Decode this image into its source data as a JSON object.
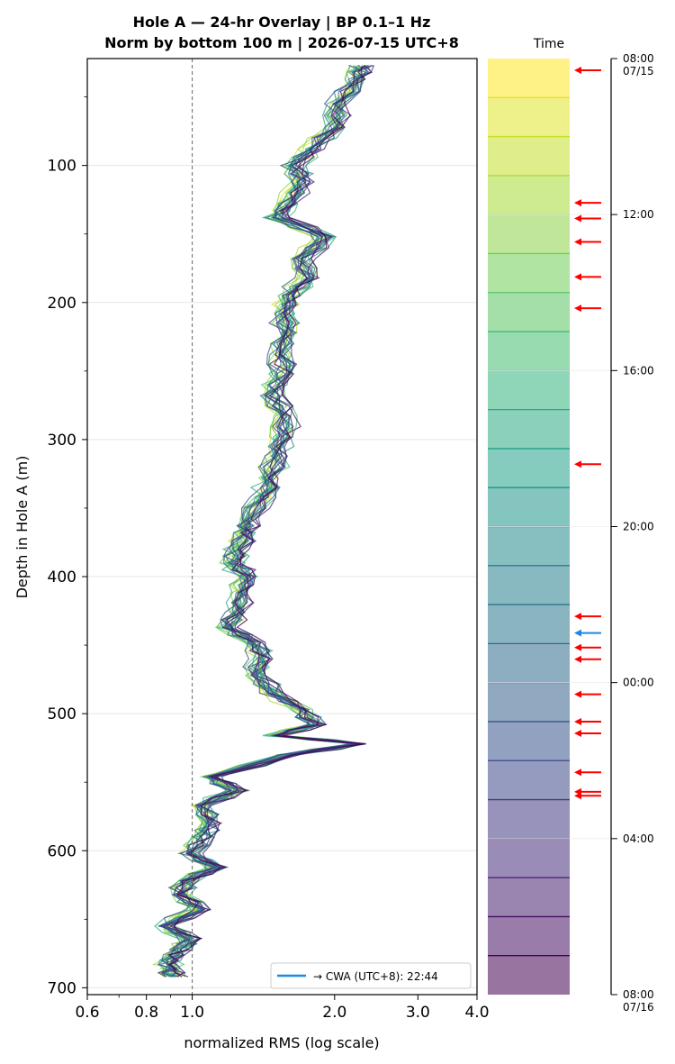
{
  "chart_data": {
    "type": "line",
    "title_line1": "Hole A — 24-hr Overlay  |  BP 0.1–1 Hz",
    "title_line2": "Norm by bottom 100 m  |  2026-07-15 UTC+8",
    "xlabel": "normalized RMS  (log scale)",
    "ylabel": "Depth in Hole A (m)",
    "x_scale": "log",
    "xlim": [
      0.6,
      4.0
    ],
    "ylim": [
      705,
      22
    ],
    "x_ticks": [
      0.6,
      0.8,
      1.0,
      2.0,
      3.0,
      4.0
    ],
    "x_tick_labels": [
      "0.6",
      "0.8",
      "1.0",
      "2.0",
      "3.0",
      "4.0"
    ],
    "y_ticks": [
      100,
      200,
      300,
      400,
      500,
      600,
      700
    ],
    "y_tick_labels": [
      "100",
      "200",
      "300",
      "400",
      "500",
      "600",
      "700"
    ],
    "reference_line_x": 1.0,
    "grid": "horizontal",
    "legend": {
      "placement": "lower-right",
      "label": "→ CWA (UTC+8): 22:44",
      "color": "#1e88e5"
    },
    "series_count": 24,
    "profile_depths": [
      27,
      37,
      55,
      72,
      88,
      100,
      112,
      128,
      138,
      152,
      168,
      182,
      195,
      208,
      222,
      238,
      252,
      268,
      283,
      298,
      312,
      328,
      342,
      358,
      368,
      380,
      390,
      400,
      412,
      426,
      437,
      448,
      460,
      472,
      485,
      497,
      508,
      516,
      522,
      530,
      546,
      556,
      567,
      580,
      590,
      602,
      612,
      622,
      632,
      643,
      655,
      664,
      672,
      680,
      686,
      692
    ],
    "profile_rms": [
      2.3,
      2.25,
      2.05,
      2.02,
      1.78,
      1.65,
      1.72,
      1.58,
      1.52,
      1.92,
      1.72,
      1.76,
      1.62,
      1.58,
      1.6,
      1.54,
      1.56,
      1.48,
      1.58,
      1.56,
      1.52,
      1.46,
      1.42,
      1.32,
      1.3,
      1.25,
      1.22,
      1.3,
      1.28,
      1.26,
      1.18,
      1.35,
      1.42,
      1.38,
      1.48,
      1.7,
      1.82,
      1.5,
      2.25,
      1.6,
      1.1,
      1.25,
      1.05,
      1.1,
      1.06,
      1.0,
      1.12,
      0.98,
      0.95,
      1.03,
      0.88,
      1.0,
      0.95,
      0.9,
      0.9,
      0.92
    ]
  },
  "timebar": {
    "title": "Time",
    "ticks": [
      "08:00\n07/15",
      "12:00",
      "16:00",
      "20:00",
      "00:00",
      "04:00",
      "08:00\n07/16"
    ],
    "tick_hours": [
      0,
      4,
      8,
      12,
      16,
      20,
      24
    ],
    "band_count": 24,
    "event_hours": [
      0.3,
      3.7,
      4.1,
      4.7,
      5.6,
      6.4,
      10.4,
      14.3,
      15.1,
      15.4,
      16.3,
      17.0,
      17.3,
      18.3,
      18.8,
      18.9
    ],
    "highlight_hour": 14.73,
    "event_color": "#ff0000",
    "highlight_color": "#1e88e5"
  }
}
